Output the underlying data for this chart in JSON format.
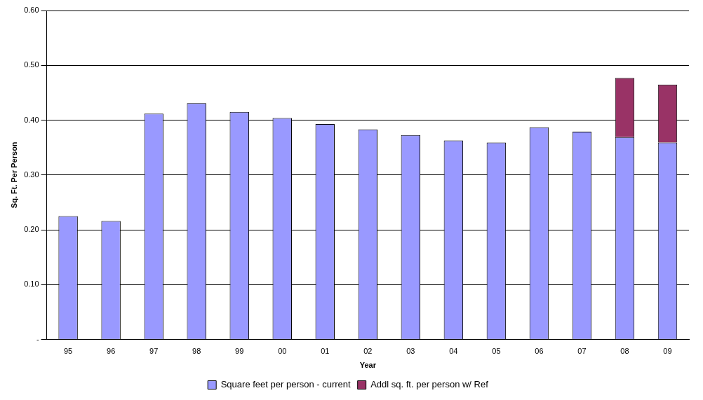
{
  "chart_data": {
    "type": "bar",
    "stacked": true,
    "xlabel": "Year",
    "ylabel": "Sq. Ft. Per Person",
    "categories": [
      "95",
      "96",
      "97",
      "98",
      "99",
      "00",
      "01",
      "02",
      "03",
      "04",
      "05",
      "06",
      "07",
      "08",
      "09"
    ],
    "series": [
      {
        "name": "Square feet per person - current",
        "color": "#9999ff",
        "values": [
          0.225,
          0.216,
          0.412,
          0.431,
          0.415,
          0.404,
          0.393,
          0.383,
          0.373,
          0.363,
          0.359,
          0.387,
          0.379,
          0.369,
          0.359
        ]
      },
      {
        "name": "Addl sq. ft. per person w/ Ref",
        "color": "#993366",
        "values": [
          null,
          null,
          null,
          null,
          null,
          null,
          null,
          null,
          null,
          null,
          null,
          null,
          null,
          0.108,
          0.106
        ]
      }
    ],
    "ylim": [
      0,
      0.6
    ],
    "yticks": [
      {
        "value": 0,
        "label": "-"
      },
      {
        "value": 0.1,
        "label": "0.10"
      },
      {
        "value": 0.2,
        "label": "0.20"
      },
      {
        "value": 0.3,
        "label": "0.30"
      },
      {
        "value": 0.4,
        "label": "0.40"
      },
      {
        "value": 0.5,
        "label": "0.50"
      },
      {
        "value": 0.6,
        "label": "0.60"
      }
    ],
    "grid": "y",
    "legend": "bottom"
  }
}
